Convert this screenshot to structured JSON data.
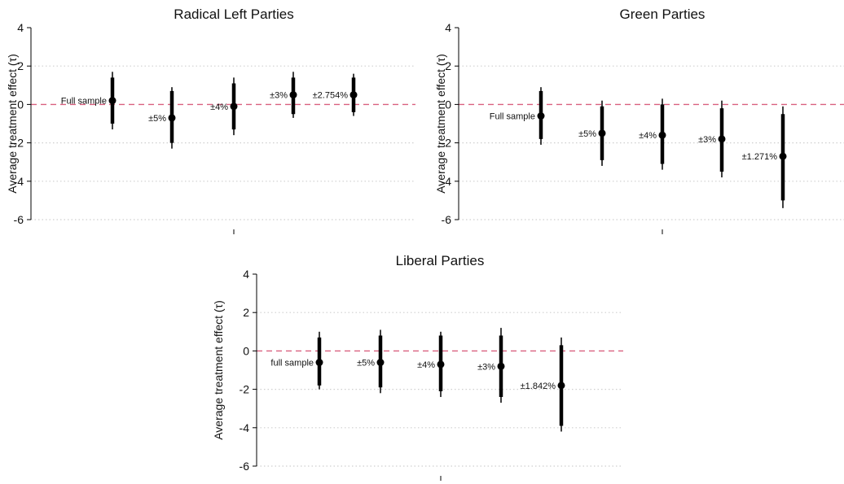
{
  "colors": {
    "zero_line": "#d9607f",
    "grid": "#cfcfcf",
    "axis": "#000000",
    "marker": "#000000"
  },
  "chart_data": [
    {
      "type": "scatter",
      "title": "Radical Left Parties",
      "ylabel": "Average treatment effect (τ)",
      "ylim": [
        -6,
        4
      ],
      "yticks": [
        4,
        2,
        0,
        -2,
        -4,
        -6
      ],
      "grid": true,
      "reference_line": 0,
      "points": [
        {
          "label": "Full sample",
          "estimate": 0.2,
          "ci90": [
            -1.0,
            1.4
          ],
          "ci95": [
            -1.3,
            1.7
          ]
        },
        {
          "label": "±5%",
          "estimate": -0.7,
          "ci90": [
            -2.0,
            0.7
          ],
          "ci95": [
            -2.3,
            0.9
          ]
        },
        {
          "label": "±4%",
          "estimate": -0.1,
          "ci90": [
            -1.3,
            1.1
          ],
          "ci95": [
            -1.6,
            1.4
          ]
        },
        {
          "label": "±3%",
          "estimate": 0.5,
          "ci90": [
            -0.5,
            1.4
          ],
          "ci95": [
            -0.7,
            1.7
          ]
        },
        {
          "label": "±2.754%",
          "estimate": 0.5,
          "ci90": [
            -0.4,
            1.4
          ],
          "ci95": [
            -0.6,
            1.6
          ]
        }
      ]
    },
    {
      "type": "scatter",
      "title": "Green Parties",
      "ylabel": "Average treatment effect (τ)",
      "ylim": [
        -6,
        4
      ],
      "yticks": [
        4,
        2,
        0,
        -2,
        -4,
        -6
      ],
      "grid": true,
      "reference_line": 0,
      "points": [
        {
          "label": "Full sample",
          "estimate": -0.6,
          "ci90": [
            -1.8,
            0.7
          ],
          "ci95": [
            -2.1,
            0.9
          ]
        },
        {
          "label": "±5%",
          "estimate": -1.5,
          "ci90": [
            -2.9,
            -0.1
          ],
          "ci95": [
            -3.2,
            0.2
          ]
        },
        {
          "label": "±4%",
          "estimate": -1.6,
          "ci90": [
            -3.1,
            0.0
          ],
          "ci95": [
            -3.4,
            0.3
          ]
        },
        {
          "label": "±3%",
          "estimate": -1.8,
          "ci90": [
            -3.5,
            -0.2
          ],
          "ci95": [
            -3.8,
            0.2
          ]
        },
        {
          "label": "±1.271%",
          "estimate": -2.7,
          "ci90": [
            -5.0,
            -0.5
          ],
          "ci95": [
            -5.4,
            -0.1
          ]
        }
      ]
    },
    {
      "type": "scatter",
      "title": "Liberal Parties",
      "ylabel": "Average treatment effect (τ)",
      "ylim": [
        -6,
        4
      ],
      "yticks": [
        4,
        2,
        0,
        -2,
        -4,
        -6
      ],
      "grid": true,
      "reference_line": 0,
      "points": [
        {
          "label": "full sample",
          "estimate": -0.6,
          "ci90": [
            -1.8,
            0.7
          ],
          "ci95": [
            -2.0,
            1.0
          ]
        },
        {
          "label": "±5%",
          "estimate": -0.6,
          "ci90": [
            -1.9,
            0.8
          ],
          "ci95": [
            -2.2,
            1.1
          ]
        },
        {
          "label": "±4%",
          "estimate": -0.7,
          "ci90": [
            -2.1,
            0.8
          ],
          "ci95": [
            -2.4,
            1.0
          ]
        },
        {
          "label": "±3%",
          "estimate": -0.8,
          "ci90": [
            -2.4,
            0.8
          ],
          "ci95": [
            -2.7,
            1.2
          ]
        },
        {
          "label": "±1.842%",
          "estimate": -1.8,
          "ci90": [
            -3.9,
            0.3
          ],
          "ci95": [
            -4.2,
            0.7
          ]
        }
      ]
    }
  ]
}
